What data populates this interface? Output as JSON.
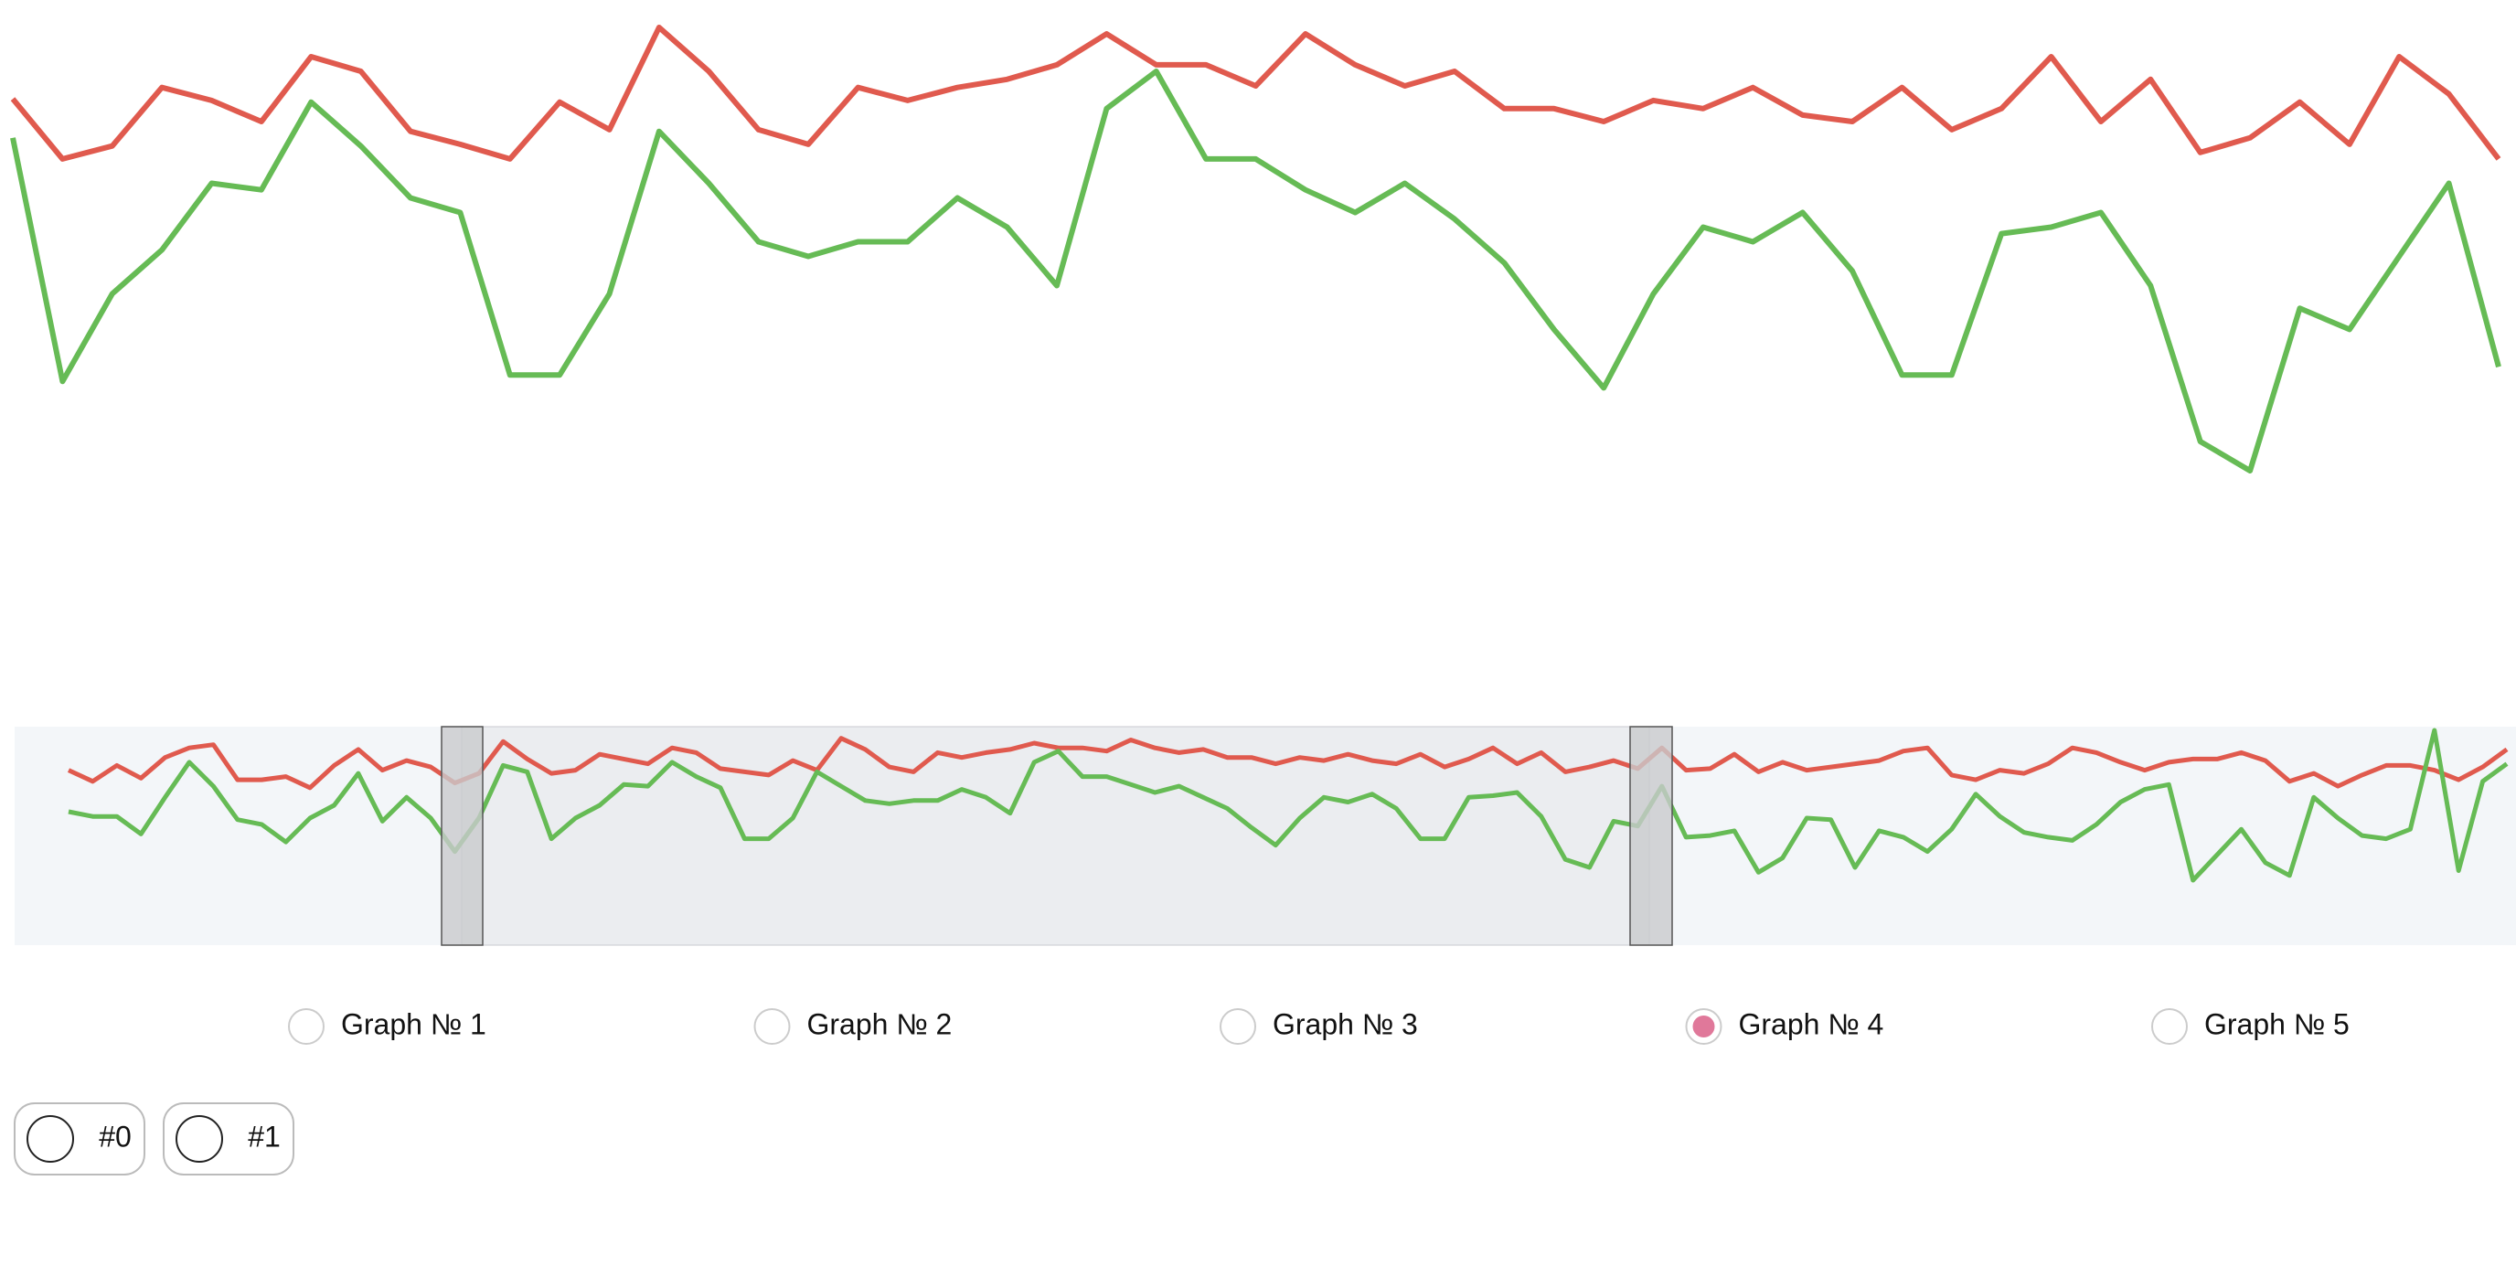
{
  "chart_data": [
    {
      "type": "line",
      "series": [
        {
          "color": "#e05a4e",
          "values": [
            237,
            200,
            208,
            244,
            236,
            223,
            263,
            254,
            217,
            209,
            200,
            235,
            218,
            281,
            254,
            218,
            209,
            244,
            236,
            244,
            249,
            258,
            277,
            258,
            258,
            245,
            277,
            258,
            245,
            254,
            231,
            231,
            223,
            236,
            231,
            244,
            227,
            223,
            244,
            218,
            231,
            263,
            223,
            249,
            204,
            213,
            235,
            209,
            263,
            240,
            200
          ]
        },
        {
          "color": "#66bb55",
          "values": [
            213,
            63,
            117,
            144,
            185,
            181,
            235,
            208,
            176,
            167,
            67,
            67,
            117,
            217,
            185,
            149,
            140,
            149,
            149,
            176,
            158,
            122,
            231,
            254,
            200,
            200,
            181,
            167,
            185,
            163,
            136,
            95,
            59,
            117,
            158,
            149,
            167,
            131,
            67,
            67,
            154,
            158,
            167,
            122,
            26,
            8,
            108,
            95,
            140,
            185,
            72
          ]
        }
      ]
    },
    {
      "type": "line",
      "series": [
        {
          "color": "#e05a4e",
          "values": [
            120,
            113,
            123,
            115,
            128,
            134,
            136,
            114,
            114,
            116,
            109,
            123,
            133,
            120,
            126,
            122,
            112,
            118,
            138,
            127,
            118,
            120,
            130,
            127,
            124,
            134,
            131,
            121,
            119,
            117,
            126,
            120,
            140,
            133,
            122,
            119,
            131,
            128,
            131,
            133,
            137,
            134,
            134,
            132,
            139,
            134,
            131,
            133,
            128,
            128,
            124,
            128,
            126,
            130,
            126,
            124,
            130,
            122,
            127,
            134,
            124,
            131,
            119,
            122,
            126,
            121,
            134,
            120,
            121,
            130,
            119,
            125,
            120,
            122,
            124,
            126,
            132,
            134,
            117,
            114,
            120,
            118,
            124,
            134,
            131,
            125,
            120,
            125,
            127,
            127,
            131,
            126,
            113,
            118,
            110,
            117,
            123,
            123,
            120,
            114,
            122,
            133
          ]
        },
        {
          "color": "#66bb55",
          "values": [
            94,
            91,
            91,
            80,
            103,
            125,
            110,
            89,
            86,
            75,
            90,
            98,
            118,
            88,
            103,
            90,
            69,
            90,
            123,
            119,
            77,
            90,
            98,
            111,
            110,
            125,
            116,
            109,
            77,
            77,
            90,
            119,
            110,
            101,
            99,
            101,
            101,
            108,
            103,
            93,
            125,
            132,
            116,
            116,
            111,
            106,
            110,
            103,
            96,
            84,
            73,
            90,
            103,
            100,
            105,
            96,
            77,
            77,
            103,
            104,
            106,
            91,
            64,
            59,
            88,
            85,
            110,
            78,
            79,
            82,
            56,
            65,
            90,
            89,
            59,
            82,
            78,
            69,
            83,
            105,
            91,
            81,
            78,
            76,
            86,
            100,
            108,
            111,
            51,
            67,
            83,
            62,
            54,
            103,
            90,
            79,
            77,
            83,
            145,
            57,
            113,
            124
          ]
        }
      ]
    }
  ],
  "controls": {
    "graphs": [
      "Graph № 1",
      "Graph № 2",
      "Graph № 3",
      "Graph № 4",
      "Graph № 5"
    ],
    "selected": 3,
    "toggles": [
      "#0",
      "#1"
    ]
  }
}
